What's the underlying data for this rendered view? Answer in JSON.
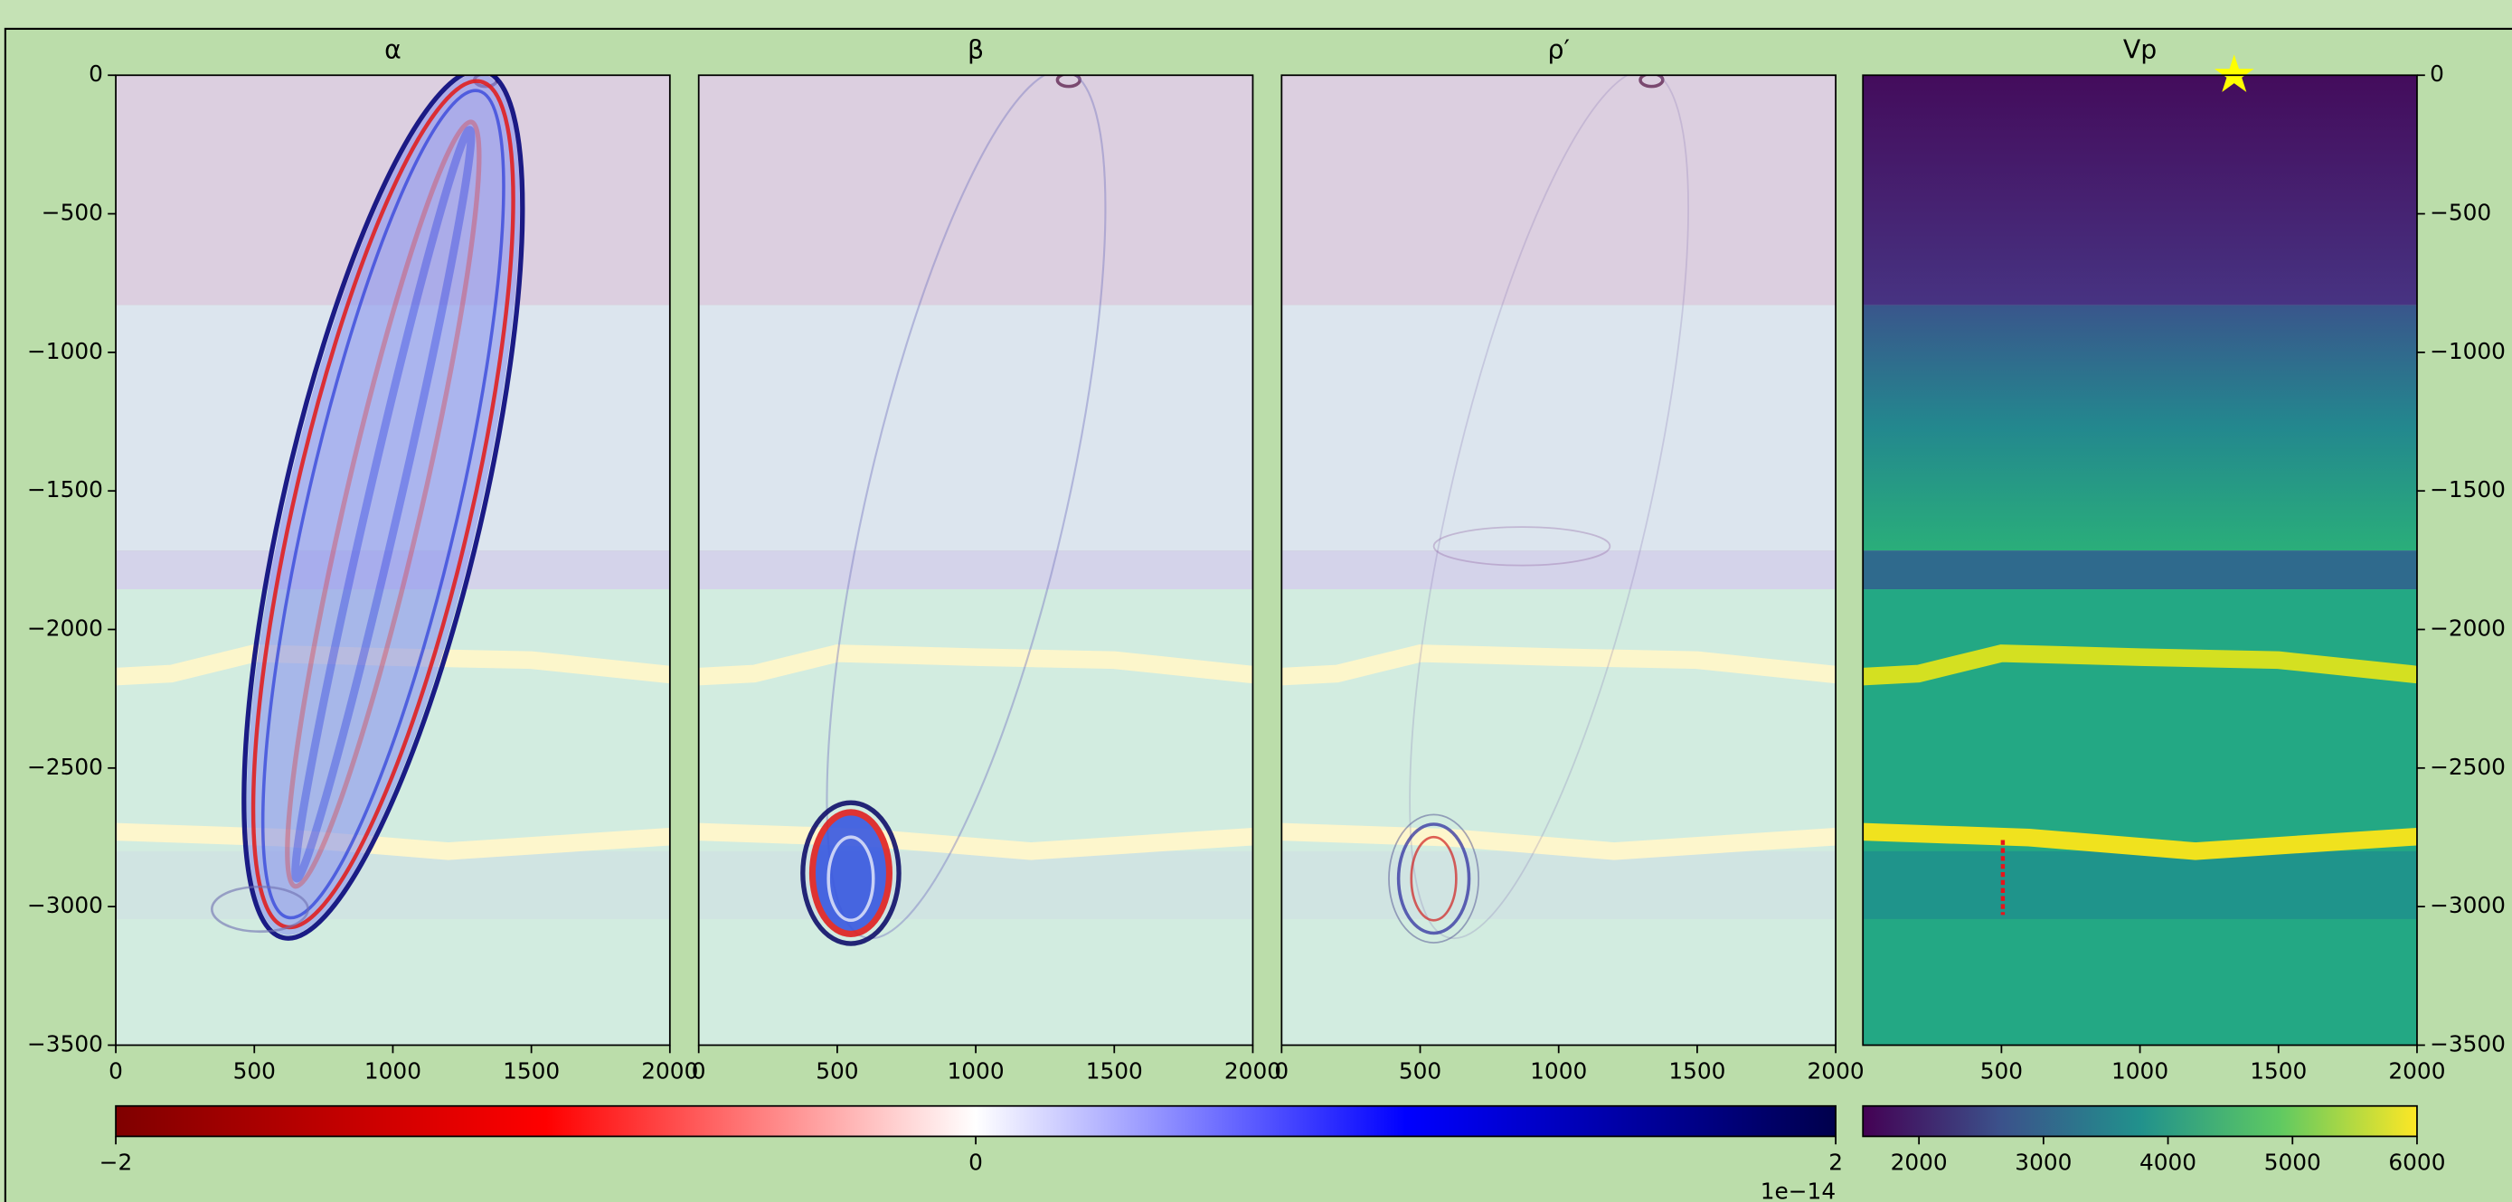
{
  "chart_data": [
    {
      "type": "heatmap",
      "title": "α",
      "colormap": "seismic_r",
      "y_axis": "left",
      "xlim": [
        0,
        2000
      ],
      "ylim": [
        -3500,
        0
      ],
      "xticks": [
        0,
        500,
        1000,
        1500,
        2000
      ],
      "yticks": [
        0,
        {
          "value": -500,
          "label": "−500"
        },
        {
          "value": -1000,
          "label": "−1000"
        },
        {
          "value": -1500,
          "label": "−1500"
        },
        {
          "value": -2000,
          "label": "−2000"
        },
        {
          "value": -2500,
          "label": "−2500"
        },
        {
          "value": -3000,
          "label": "−3000"
        },
        {
          "value": -3500,
          "label": "−3500"
        }
      ]
    },
    {
      "type": "heatmap",
      "title": "β",
      "colormap": "seismic_r",
      "xlim": [
        0,
        2000
      ],
      "ylim": [
        -3500,
        0
      ],
      "xticks": [
        0,
        500,
        1000,
        1500,
        2000
      ]
    },
    {
      "type": "heatmap",
      "title": "ρ′",
      "colormap": "seismic_r",
      "xlim": [
        0,
        2000
      ],
      "ylim": [
        -3500,
        0
      ],
      "xticks": [
        0,
        500,
        1000,
        1500,
        2000
      ]
    },
    {
      "type": "heatmap",
      "title": "Vp",
      "colormap": "viridis",
      "y_axis": "right",
      "xlim": [
        0,
        2000
      ],
      "ylim": [
        -3500,
        0
      ],
      "xticks": [
        500,
        1000,
        1500,
        2000
      ],
      "yticks": [
        0,
        {
          "value": -500,
          "label": "−500"
        },
        {
          "value": -1000,
          "label": "−1000"
        },
        {
          "value": -1500,
          "label": "−1500"
        },
        {
          "value": -2000,
          "label": "−2000"
        },
        {
          "value": -2500,
          "label": "−2500"
        },
        {
          "value": -3000,
          "label": "−3000"
        },
        {
          "value": -3500,
          "label": "−3500"
        }
      ],
      "source": {
        "x": 1340,
        "y": 0,
        "color": "#ffff00"
      },
      "receivers": {
        "x": [
          505,
          505
        ],
        "y": [
          -2760,
          -3030
        ],
        "color": "#e8141a"
      }
    },
    {
      "type": "colorbar",
      "colormap": "seismic_r",
      "xlim": [
        -2,
        2
      ],
      "xticks": [
        {
          "value": -2,
          "label": "−2"
        },
        0,
        2
      ],
      "offset_label": "1e−14"
    },
    {
      "type": "colorbar",
      "colormap": "viridis",
      "xlim": [
        1550,
        6000
      ],
      "xticks": [
        2000,
        3000,
        4000,
        5000,
        6000
      ]
    }
  ]
}
